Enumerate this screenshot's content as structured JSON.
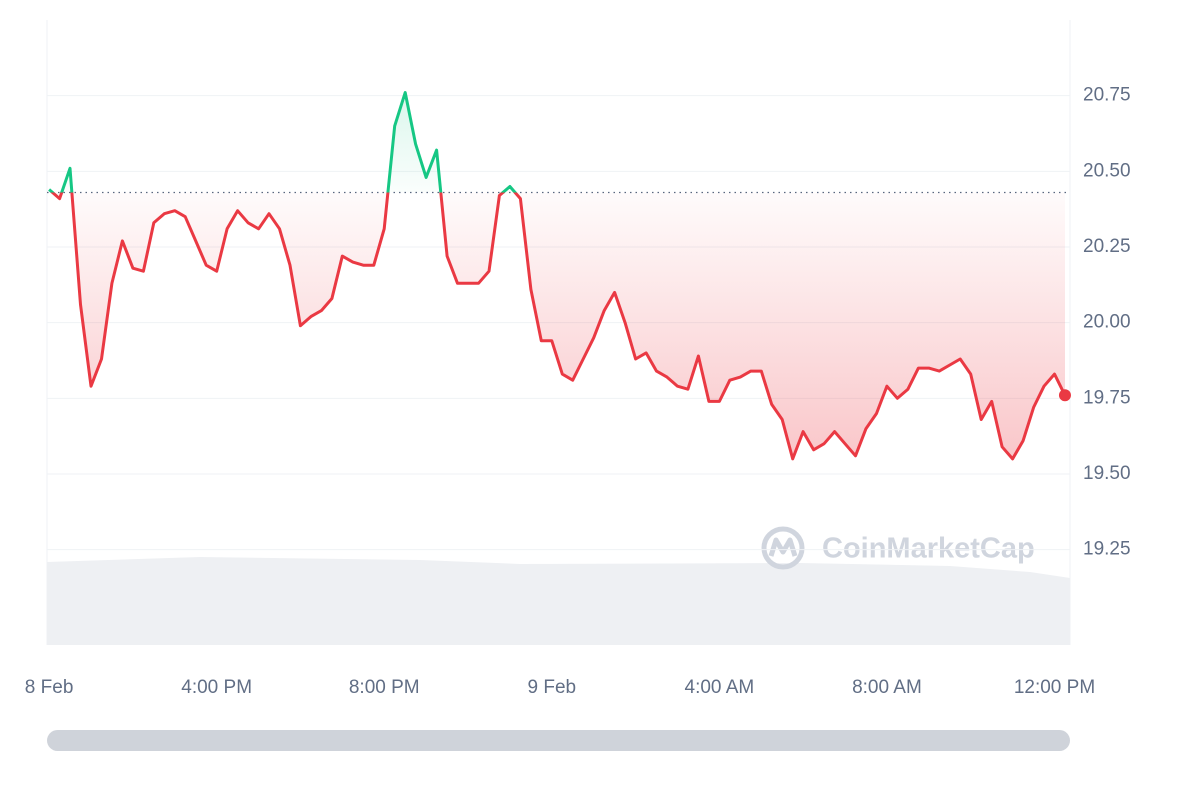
{
  "chart_data": {
    "type": "line",
    "watermark": "CoinMarketCap",
    "x": [
      12,
      12.25,
      12.5,
      12.75,
      13,
      13.25,
      13.5,
      13.75,
      14,
      14.25,
      14.5,
      14.75,
      15,
      15.25,
      15.5,
      15.75,
      16,
      16.25,
      16.5,
      16.75,
      17,
      17.25,
      17.5,
      17.75,
      18,
      18.25,
      18.5,
      18.75,
      19,
      19.25,
      19.5,
      19.75,
      20,
      20.25,
      20.5,
      20.75,
      21,
      21.25,
      21.5,
      21.75,
      22,
      22.25,
      22.5,
      22.75,
      23,
      23.25,
      23.5,
      23.75,
      24,
      24.25,
      24.5,
      24.75,
      25,
      25.25,
      25.5,
      25.75,
      26,
      26.25,
      26.5,
      26.75,
      27,
      27.25,
      27.5,
      27.75,
      28,
      28.25,
      28.5,
      28.75,
      29,
      29.25,
      29.5,
      29.75,
      30,
      30.25,
      30.5,
      30.75,
      31,
      31.25,
      31.5,
      31.75,
      32,
      32.25,
      32.5,
      32.75,
      33,
      33.25,
      33.5,
      33.75,
      34,
      34.25,
      34.5,
      34.75,
      35,
      35.25,
      35.5,
      35.75,
      36,
      36.25
    ],
    "series": [
      {
        "values": [
          20.44,
          20.41,
          20.51,
          20.06,
          19.79,
          19.88,
          20.13,
          20.27,
          20.18,
          20.17,
          20.33,
          20.36,
          20.37,
          20.35,
          20.27,
          20.19,
          20.17,
          20.31,
          20.37,
          20.33,
          20.31,
          20.36,
          20.31,
          20.19,
          19.99,
          20.02,
          20.04,
          20.08,
          20.22,
          20.2,
          20.19,
          20.19,
          20.31,
          20.65,
          20.76,
          20.59,
          20.48,
          20.57,
          20.22,
          20.13,
          20.13,
          20.13,
          20.17,
          20.42,
          20.45,
          20.41,
          20.11,
          19.94,
          19.94,
          19.83,
          19.81,
          19.88,
          19.95,
          20.04,
          20.1,
          20,
          19.88,
          19.9,
          19.84,
          19.82,
          19.79,
          19.78,
          19.89,
          19.74,
          19.74,
          19.81,
          19.82,
          19.84,
          19.84,
          19.73,
          19.68,
          19.55,
          19.64,
          19.58,
          19.6,
          19.64,
          19.6,
          19.56,
          19.65,
          19.7,
          19.79,
          19.75,
          19.78,
          19.85,
          19.85,
          19.84,
          19.86,
          19.88,
          19.83,
          19.68,
          19.74,
          19.59,
          19.55,
          19.61,
          19.72,
          19.79,
          19.83,
          19.76
        ]
      }
    ],
    "baseline": 20.43,
    "up_color": "#16c784",
    "down_color": "#ea3943",
    "xlim": [
      11.95,
      36.37
    ],
    "xticks": [
      {
        "value": 12,
        "label": "8 Feb"
      },
      {
        "value": 16,
        "label": "4:00 PM"
      },
      {
        "value": 20,
        "label": "8:00 PM"
      },
      {
        "value": 24,
        "label": "9 Feb"
      },
      {
        "value": 28,
        "label": "4:00 AM"
      },
      {
        "value": 32,
        "label": "8:00 AM"
      },
      {
        "value": 36,
        "label": "12:00 PM"
      }
    ],
    "ylim": [
      18.935,
      21.0
    ],
    "yticks": [
      19.25,
      {
        "value": 19.5,
        "label": "19.50"
      },
      19.75,
      {
        "value": 20,
        "label": "20.00"
      },
      20.25,
      {
        "value": 20.5,
        "label": "20.50"
      },
      20.75
    ],
    "grid": true
  }
}
